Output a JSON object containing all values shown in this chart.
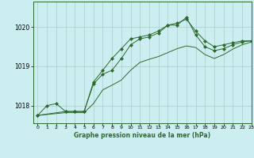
{
  "title": "Graphe pression niveau de la mer (hPa)",
  "bg_color": "#cceef0",
  "grid_color": "#aacccc",
  "line_color": "#2d6a2d",
  "marker_color": "#2d6a2d",
  "xlim": [
    -0.5,
    23
  ],
  "ylim": [
    1017.55,
    1020.65
  ],
  "yticks": [
    1018,
    1019,
    1020
  ],
  "xticks": [
    0,
    1,
    2,
    3,
    4,
    5,
    6,
    7,
    8,
    9,
    10,
    11,
    12,
    13,
    14,
    15,
    16,
    17,
    18,
    19,
    20,
    21,
    22,
    23
  ],
  "series1": {
    "x": [
      0,
      1,
      2,
      3,
      4,
      5,
      6,
      7,
      8,
      9,
      10,
      11,
      12,
      13,
      14,
      15,
      16,
      17,
      18,
      19,
      20,
      21,
      22,
      23
    ],
    "y": [
      1017.75,
      1018.0,
      1018.05,
      1017.85,
      1017.85,
      1017.85,
      1018.6,
      1018.9,
      1019.2,
      1019.45,
      1019.7,
      1019.75,
      1019.8,
      1019.9,
      1020.05,
      1020.1,
      1020.2,
      1019.9,
      1019.65,
      1019.5,
      1019.55,
      1019.6,
      1019.65,
      1019.65
    ]
  },
  "series2": {
    "x": [
      0,
      3,
      4,
      5,
      6,
      7,
      8,
      9,
      10,
      11,
      12,
      13,
      14,
      15,
      16,
      17,
      18,
      19,
      20,
      21,
      22,
      23
    ],
    "y": [
      1017.75,
      1017.85,
      1017.85,
      1017.85,
      1018.55,
      1018.8,
      1018.9,
      1019.2,
      1019.55,
      1019.7,
      1019.75,
      1019.85,
      1020.05,
      1020.05,
      1020.25,
      1019.8,
      1019.5,
      1019.4,
      1019.45,
      1019.55,
      1019.62,
      1019.65
    ]
  },
  "series3": {
    "x": [
      0,
      3,
      5,
      6,
      7,
      8,
      9,
      10,
      11,
      12,
      13,
      14,
      15,
      16,
      17,
      18,
      19,
      20,
      21,
      22,
      23
    ],
    "y": [
      1017.75,
      1017.82,
      1017.82,
      1018.05,
      1018.4,
      1018.52,
      1018.65,
      1018.9,
      1019.1,
      1019.18,
      1019.25,
      1019.35,
      1019.45,
      1019.52,
      1019.48,
      1019.3,
      1019.2,
      1019.3,
      1019.44,
      1019.55,
      1019.62
    ]
  }
}
